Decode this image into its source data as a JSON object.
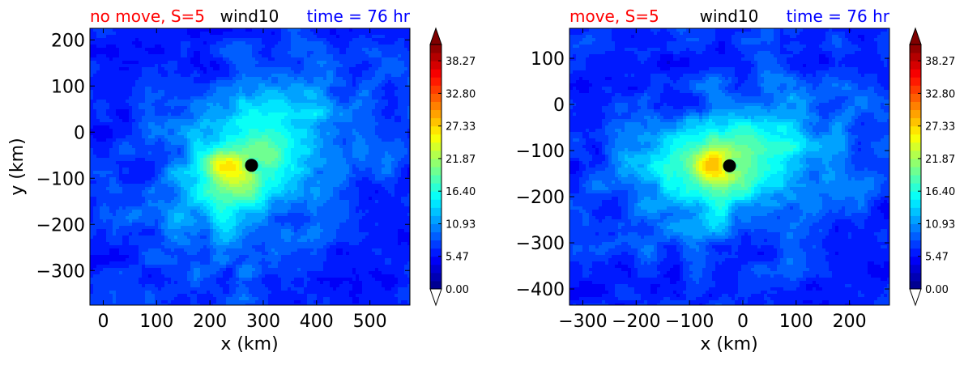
{
  "chart_data": [
    {
      "type": "heatmap",
      "title_left": "no move, S=5",
      "title_center": "wind10",
      "title_right": "time = 76 hr",
      "xlabel": "x (km)",
      "ylabel": "y (km)",
      "xlim": [
        -25,
        575
      ],
      "ylim": [
        -375,
        225
      ],
      "xticks": [
        0,
        100,
        200,
        300,
        400,
        500
      ],
      "yticks": [
        200,
        100,
        0,
        -100,
        -200,
        -300
      ],
      "marker": {
        "x": 278,
        "y": -72
      },
      "max_point": {
        "x": 228,
        "y": -78
      }
    },
    {
      "type": "heatmap",
      "title_left": "move, S=5",
      "title_center": "wind10",
      "title_right": "time = 76 hr",
      "xlabel": "x (km)",
      "ylabel": "",
      "xlim": [
        -325,
        275
      ],
      "ylim": [
        -435,
        165
      ],
      "xticks": [
        -300,
        -200,
        -100,
        0,
        100,
        200
      ],
      "yticks": [
        100,
        0,
        -100,
        -200,
        -300,
        -400
      ],
      "marker": {
        "x": -25,
        "y": -133
      },
      "max_point": {
        "x": -55,
        "y": -135
      }
    }
  ],
  "colorbar": {
    "min": 0,
    "max": 41,
    "tick_labels": [
      "0.00",
      "5.47",
      "10.93",
      "16.40",
      "21.87",
      "27.33",
      "32.80",
      "38.27"
    ],
    "tick_values": [
      0,
      5.47,
      10.93,
      16.4,
      21.87,
      27.33,
      32.8,
      38.27
    ],
    "extend": "both"
  },
  "colors": {
    "title_left": "#ff0000",
    "title_center": "#000000",
    "title_right": "#0000ff",
    "marker": "#000000"
  }
}
